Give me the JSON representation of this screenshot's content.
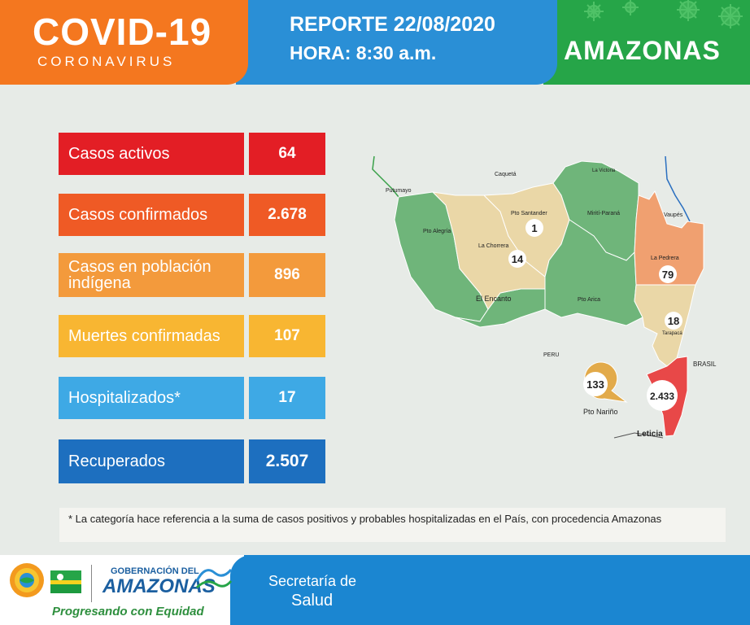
{
  "header": {
    "title": "COVID-19",
    "subtitle": "CORONAVIRUS",
    "report_date": "REPORTE 22/08/2020",
    "report_time": "HORA: 8:30 a.m.",
    "region": "AMAZONAS"
  },
  "stats": [
    {
      "label": "Casos activos",
      "value": "64",
      "color": "#e31e25"
    },
    {
      "label": "Casos confirmados",
      "value": "2.678",
      "color": "#ef5a25"
    },
    {
      "label": "Casos en población indígena",
      "value": "896",
      "color": "#f39a3c"
    },
    {
      "label": "Muertes confirmadas",
      "value": "107",
      "color": "#f8b632"
    },
    {
      "label": "Hospitalizados*",
      "value": "17",
      "color": "#3ea9e5"
    },
    {
      "label": "Recuperados",
      "value": "2.507",
      "color": "#1d6fbf"
    }
  ],
  "footnote": "* La categoría hace referencia a la suma de casos positivos y probables hospitalizadas en el País, con procedencia Amazonas",
  "map": {
    "labels": {
      "caqueta": "Caquetá",
      "putumayo": "Putumayo",
      "la_victoria": "La Victoria",
      "vaupes": "Vaupés",
      "pto_santander": "Pto Santander",
      "miriti_parana": "Mirití-Paraná",
      "pto_alegria": "Pto Alegría",
      "la_chorrera": "La Chorrera",
      "la_pedrera": "La Pedrera",
      "el_encanto": "El Encanto",
      "pto_arica": "Pto Arica",
      "tarapaca": "Tarapacá",
      "peru": "PERU",
      "brasil": "BRASIL",
      "pto_narino": "Pto Nariño",
      "leticia": "Leticia"
    },
    "cases": {
      "pto_santander": "1",
      "la_chorrera": "14",
      "la_pedrera": "79",
      "tarapaca": "18",
      "pto_narino": "133",
      "leticia": "2.433"
    },
    "colors": {
      "green": "#6fb57a",
      "beige": "#ead7a7",
      "salmon": "#f0a070",
      "red": "#e84848",
      "gold": "#e2aa4a"
    }
  },
  "footer": {
    "gov_line1": "GOBERNACIÓN DEL",
    "gov_line2": "AMAZONAS",
    "slogan": "Progresando con Equidad",
    "secretaria_line1": "Secretaría de",
    "secretaria_line2": "Salud"
  },
  "icons": [
    "virus-icon",
    "sun-emblem-icon",
    "amazonas-flag-icon",
    "river-logo-icon"
  ]
}
